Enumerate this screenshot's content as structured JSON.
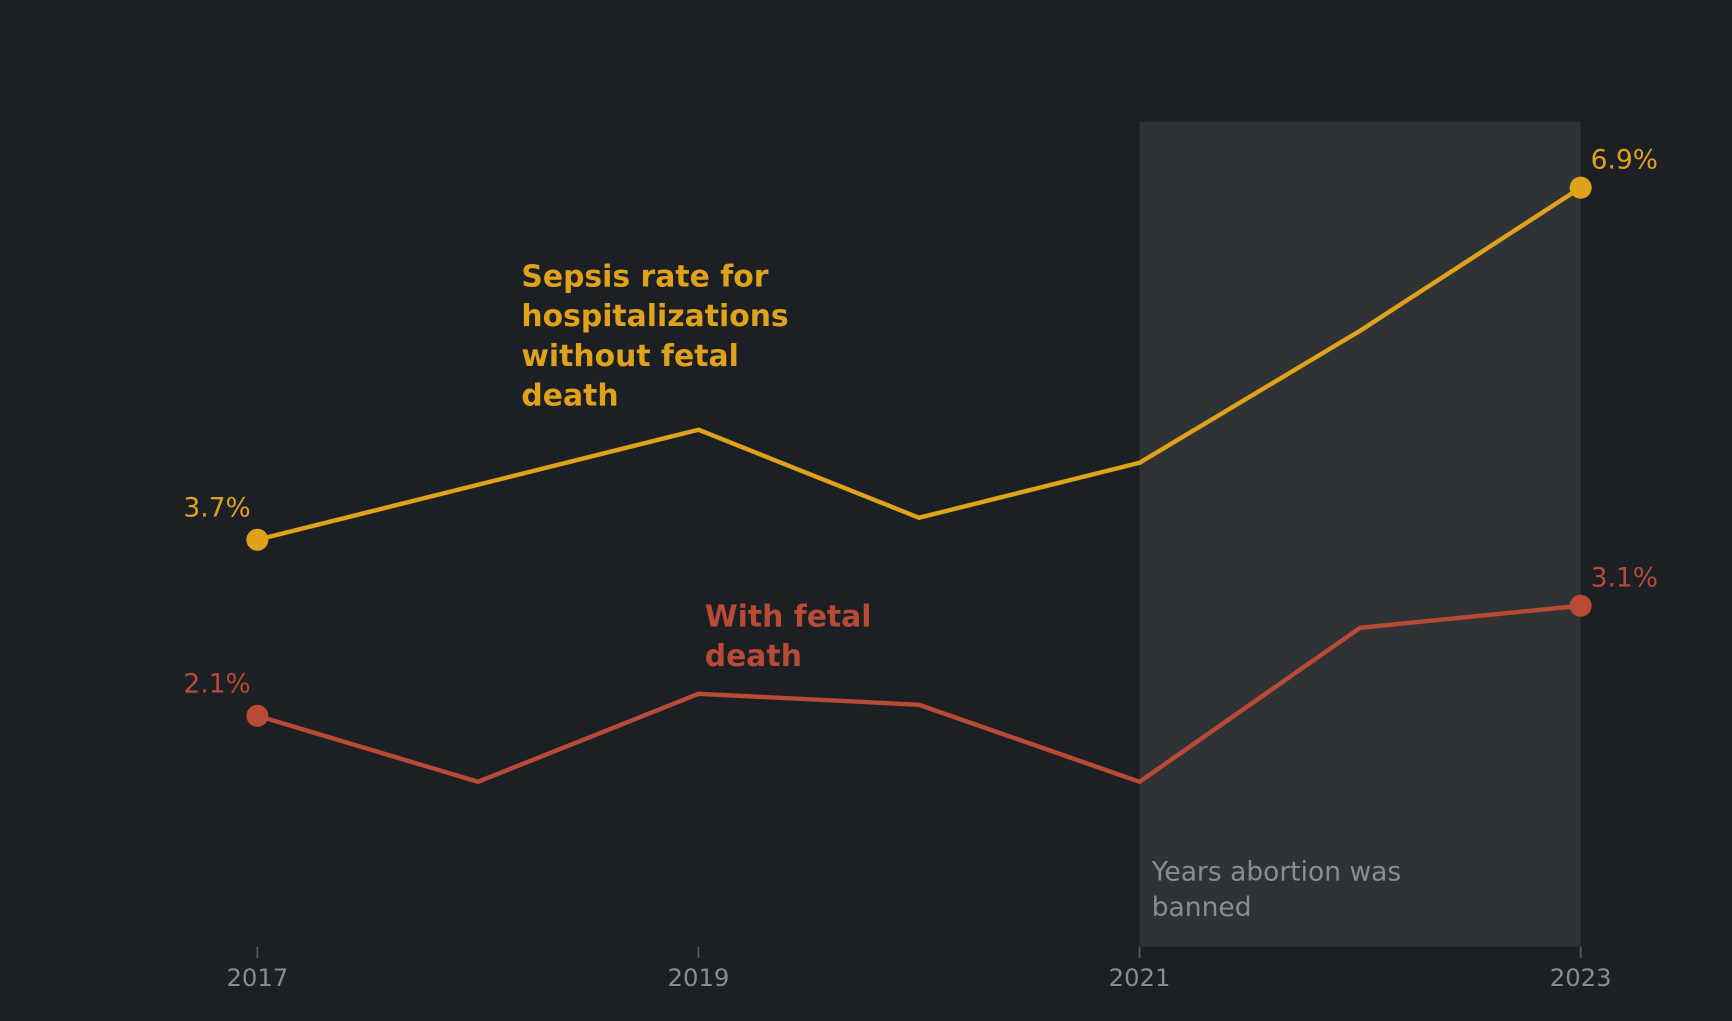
{
  "chart_data": {
    "type": "line",
    "x": [
      2017,
      2018,
      2019,
      2020,
      2021,
      2022,
      2023
    ],
    "series": [
      {
        "name": "Sepsis rate for hospitalizations without fetal death",
        "color": "#e0a21b",
        "values": [
          3.7,
          4.2,
          4.7,
          3.9,
          4.4,
          5.6,
          6.9
        ],
        "value_labels": [
          "3.7%",
          null,
          null,
          null,
          null,
          null,
          "6.9%"
        ]
      },
      {
        "name": "With fetal death",
        "color": "#b84a36",
        "values": [
          2.1,
          1.5,
          2.3,
          2.2,
          1.5,
          2.9,
          3.1
        ],
        "value_labels": [
          "2.1%",
          null,
          null,
          null,
          null,
          null,
          "3.1%"
        ]
      }
    ],
    "xlim": [
      2017,
      2023
    ],
    "xticks": [
      2017,
      2019,
      2021,
      2023
    ],
    "ylim": [
      0,
      7.5
    ],
    "shade": {
      "x": [
        2021,
        2023
      ],
      "label": "Years abortion was banned",
      "color": "#303336"
    }
  }
}
